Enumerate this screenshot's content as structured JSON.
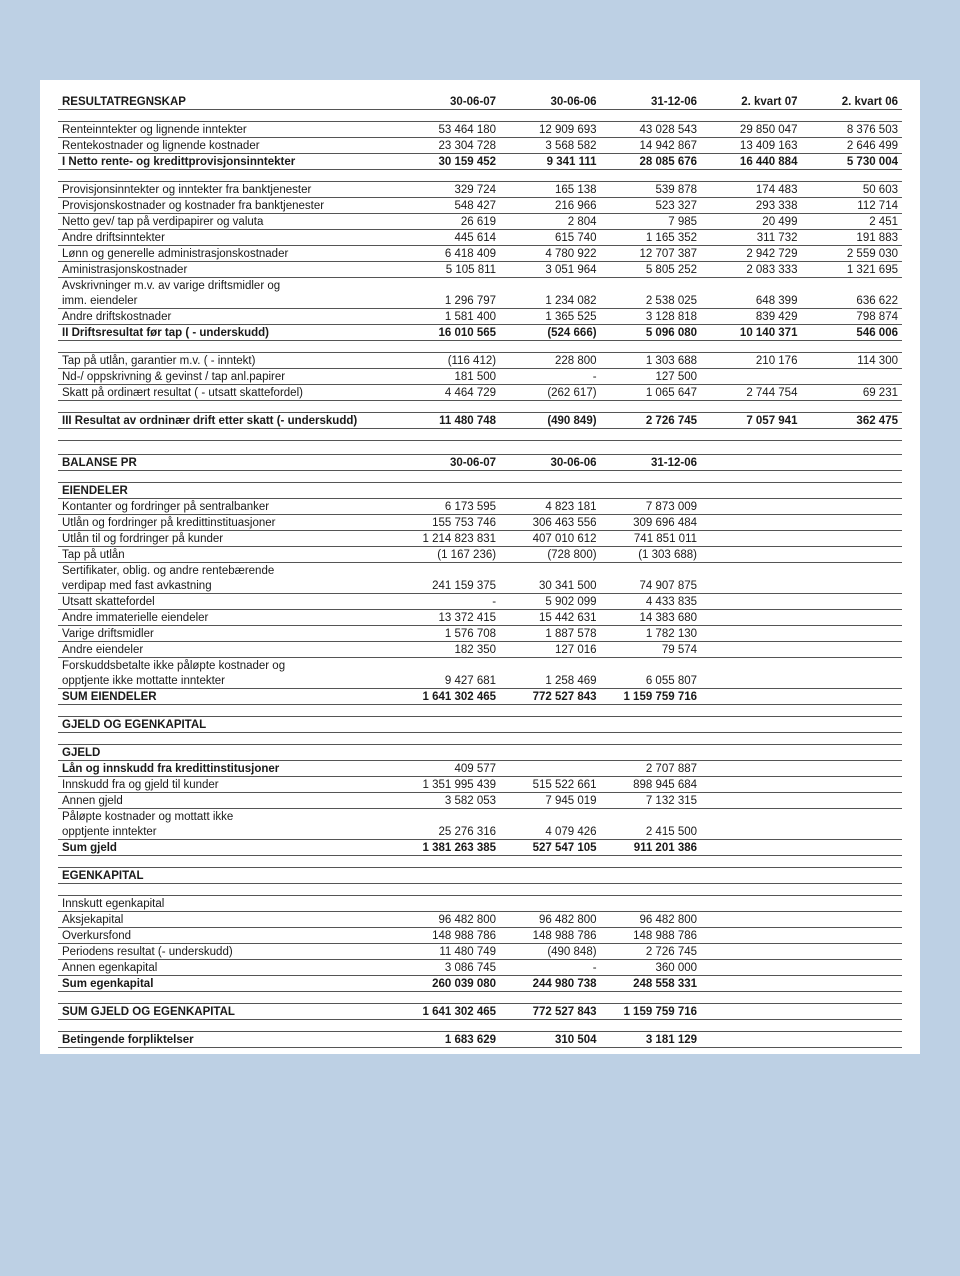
{
  "colors": {
    "page_bg": "#bdd0e4",
    "sheet_bg": "#ffffff",
    "text": "#1a1a1a",
    "rule": "#555555"
  },
  "fonts": {
    "body_size_pt": 9,
    "header_weight": 600
  },
  "columns": [
    "30-06-07",
    "30-06-06",
    "31-12-06",
    "2. kvart 07",
    "2. kvart 06"
  ],
  "sections": {
    "resultat": {
      "title": "RESULTATREGNSKAP",
      "rows": [
        {
          "label": "Renteinntekter og lignende inntekter",
          "v": [
            "53 464 180",
            "12 909 693",
            "43 028 543",
            "29 850 047",
            "8 376 503"
          ]
        },
        {
          "label": "Rentekostnader og lignende kostnader",
          "v": [
            "23 304 728",
            "3 568 582",
            "14 942 867",
            "13 409 163",
            "2 646 499"
          ]
        },
        {
          "label": "I Netto rente- og kredittprovisjonsinntekter",
          "v": [
            "30 159 452",
            "9 341 111",
            "28 085 676",
            "16 440 884",
            "5 730 004"
          ],
          "bold": true
        },
        {
          "spacer": true
        },
        {
          "label": "Provisjonsinntekter og inntekter fra banktjenester",
          "v": [
            "329 724",
            "165 138",
            "539 878",
            "174 483",
            "50 603"
          ]
        },
        {
          "label": "Provisjonskostnader og kostnader fra banktjenester",
          "v": [
            "548 427",
            "216 966",
            "523 327",
            "293 338",
            "112 714"
          ]
        },
        {
          "label": "Netto gev/ tap på verdipapirer og valuta",
          "v": [
            "26 619",
            "2 804",
            "7 985",
            "20 499",
            "2 451"
          ]
        },
        {
          "label": "Andre driftsinntekter",
          "v": [
            "445 614",
            "615 740",
            "1 165 352",
            "311 732",
            "191 883"
          ]
        },
        {
          "label": "Lønn og generelle administrasjonskostnader",
          "v": [
            "6 418 409",
            "4 780 922",
            "12 707 387",
            "2 942 729",
            "2 559 030"
          ]
        },
        {
          "label": "Aministrasjonskostnader",
          "v": [
            "5 105 811",
            "3 051 964",
            "5 805 252",
            "2 083 333",
            "1 321 695"
          ]
        },
        {
          "label": "Avskrivninger m.v. av varige driftsmidler og",
          "v": [
            "",
            "",
            "",
            "",
            ""
          ],
          "noborder": true
        },
        {
          "label": "imm. eiendeler",
          "v": [
            "1 296 797",
            "1 234 082",
            "2 538 025",
            "648 399",
            "636 622"
          ]
        },
        {
          "label": "Andre driftskostnader",
          "v": [
            "1 581 400",
            "1 365 525",
            "3 128 818",
            "839 429",
            "798 874"
          ]
        },
        {
          "label": "II Driftsresultat før tap  ( - underskudd)",
          "v": [
            "16 010 565",
            "(524 666)",
            "5 096 080",
            "10 140 371",
            "546 006"
          ],
          "bold": true
        },
        {
          "spacer": true
        },
        {
          "label": "Tap på utlån, garantier m.v. ( - inntekt)",
          "v": [
            "(116 412)",
            "228 800",
            "1 303 688",
            "210 176",
            "114 300"
          ]
        },
        {
          "label": "Nd-/ oppskrivning & gevinst / tap anl.papirer",
          "v": [
            "181 500",
            "-",
            "127 500",
            "",
            ""
          ]
        },
        {
          "label": "Skatt på ordinært resultat ( - utsatt skattefordel)",
          "v": [
            "4 464 729",
            "(262 617)",
            "1 065 647",
            "2 744 754",
            "69 231"
          ]
        },
        {
          "spacer": true
        },
        {
          "label": "III Resultat av ordninær drift etter skatt  (- underskudd)",
          "v": [
            "11 480 748",
            "(490 849)",
            "2 726 745",
            "7 057 941",
            "362 475"
          ],
          "bold": true
        },
        {
          "spacer": true
        }
      ]
    },
    "balanse": {
      "title": "BALANSE PR",
      "cols": [
        "30-06-07",
        "30-06-06",
        "31-12-06",
        "",
        ""
      ],
      "rows": [
        {
          "spacer": true
        },
        {
          "label": "EIENDELER",
          "v": [
            "",
            "",
            "",
            "",
            ""
          ],
          "bold": true
        },
        {
          "label": "Kontanter og fordringer på sentralbanker",
          "v": [
            "6 173 595",
            "4 823 181",
            "7 873 009",
            "",
            ""
          ]
        },
        {
          "label": "Utlån og fordringer på kredittinstituasjoner",
          "v": [
            "155 753 746",
            "306 463 556",
            "309 696 484",
            "",
            ""
          ]
        },
        {
          "label": "Utlån til og fordringer på kunder",
          "v": [
            "1 214 823 831",
            "407 010 612",
            "741 851 011",
            "",
            ""
          ]
        },
        {
          "label": "Tap på utlån",
          "v": [
            "(1 167 236)",
            "(728 800)",
            "(1 303 688)",
            "",
            ""
          ]
        },
        {
          "label": "Sertifikater, oblig. og andre rentebærende",
          "v": [
            "",
            "",
            "",
            "",
            ""
          ],
          "noborder": true
        },
        {
          "label": "verdipap med fast avkastning",
          "v": [
            "241 159 375",
            "30 341 500",
            "74 907 875",
            "",
            ""
          ]
        },
        {
          "label": "Utsatt skattefordel",
          "v": [
            "-",
            "5 902 099",
            "4 433 835",
            "",
            ""
          ]
        },
        {
          "label": "Andre immaterielle eiendeler",
          "v": [
            "13 372 415",
            "15 442 631",
            "14 383 680",
            "",
            ""
          ]
        },
        {
          "label": "Varige driftsmidler",
          "v": [
            "1 576 708",
            "1 887 578",
            "1 782 130",
            "",
            ""
          ]
        },
        {
          "label": "Andre eiendeler",
          "v": [
            "182 350",
            "127 016",
            "79 574",
            "",
            ""
          ]
        },
        {
          "label": "Forskuddsbetalte ikke påløpte kostnader og",
          "v": [
            "",
            "",
            "",
            "",
            ""
          ],
          "noborder": true
        },
        {
          "label": "opptjente ikke mottatte inntekter",
          "v": [
            "9 427 681",
            "1 258 469",
            "6 055 807",
            "",
            ""
          ]
        },
        {
          "label": "SUM EIENDELER",
          "v": [
            "1 641 302 465",
            "772 527 843",
            "1 159 759 716",
            "",
            ""
          ],
          "bold": true
        },
        {
          "spacer": true
        },
        {
          "label": "GJELD OG EGENKAPITAL",
          "v": [
            "",
            "",
            "",
            "",
            ""
          ],
          "bold": true
        },
        {
          "spacer": true
        },
        {
          "label": "GJELD",
          "v": [
            "",
            "",
            "",
            "",
            ""
          ],
          "bold": true
        },
        {
          "label": "Lån og innskudd fra kredittinstitusjoner",
          "v": [
            "409 577",
            "",
            "2 707 887",
            "",
            ""
          ],
          "boldlabel": true
        },
        {
          "label": "Innskudd fra og gjeld til kunder",
          "v": [
            "1 351 995 439",
            "515 522 661",
            "898 945 684",
            "",
            ""
          ]
        },
        {
          "label": "Annen gjeld",
          "v": [
            "3 582 053",
            "7 945 019",
            "7 132 315",
            "",
            ""
          ]
        },
        {
          "label": "Påløpte kostnader og mottatt ikke",
          "v": [
            "",
            "",
            "",
            "",
            ""
          ],
          "noborder": true
        },
        {
          "label": "opptjente inntekter",
          "v": [
            "25 276 316",
            "4 079 426",
            "2 415 500",
            "",
            ""
          ]
        },
        {
          "label": "Sum gjeld",
          "v": [
            "1 381 263 385",
            "527 547 105",
            "911 201 386",
            "",
            ""
          ],
          "bold": true
        },
        {
          "spacer": true
        },
        {
          "label": "EGENKAPITAL",
          "v": [
            "",
            "",
            "",
            "",
            ""
          ],
          "bold": true
        },
        {
          "spacer": true
        },
        {
          "label": "Innskutt egenkapital",
          "v": [
            "",
            "",
            "",
            "",
            ""
          ]
        },
        {
          "label": "Aksjekapital",
          "v": [
            "96 482 800",
            "96 482 800",
            "96 482 800",
            "",
            ""
          ]
        },
        {
          "label": "Overkursfond",
          "v": [
            "148 988 786",
            "148 988 786",
            "148 988 786",
            "",
            ""
          ]
        },
        {
          "label": "Periodens resultat  (- underskudd)",
          "v": [
            "11 480 749",
            "(490 848)",
            "2 726 745",
            "",
            ""
          ]
        },
        {
          "label": "Annen egenkapital",
          "v": [
            "3 086 745",
            "-",
            "360 000",
            "",
            ""
          ]
        },
        {
          "label": "Sum egenkapital",
          "v": [
            "260 039 080",
            "244 980 738",
            "248 558 331",
            "",
            ""
          ],
          "bold": true
        },
        {
          "spacer": true
        },
        {
          "label": "SUM GJELD OG EGENKAPITAL",
          "v": [
            "1 641 302 465",
            "772 527 843",
            "1 159 759 716",
            "",
            ""
          ],
          "bold": true
        },
        {
          "spacer": true
        },
        {
          "label": "Betingende forpliktelser",
          "v": [
            "1 683 629",
            "310 504",
            "3 181 129",
            "",
            ""
          ],
          "bold": true
        }
      ]
    }
  }
}
